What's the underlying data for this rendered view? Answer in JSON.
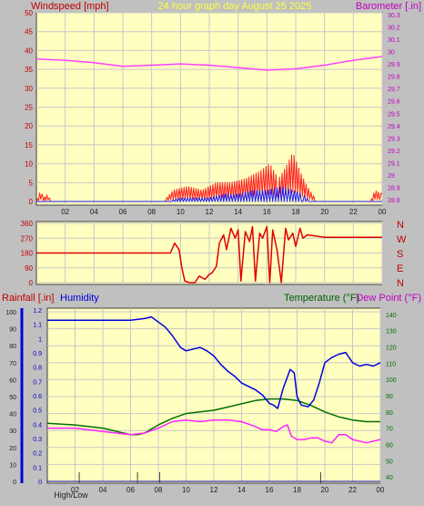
{
  "colors": {
    "panel_bg": "#c0c0c0",
    "plot_bg": "#ffffc0",
    "grid": "#c8c8c8",
    "wind": "#ff2020",
    "gust_blue": "#1a1aff",
    "barometer": "#ff40ff",
    "direction": "#e00000",
    "humidity": "#0000e0",
    "temperature": "#007000",
    "dewpoint": "#ff20ff",
    "title": "#ffff40",
    "axis_text_left": "#c00000",
    "axis_text_right": "#c000c0",
    "rain_ticks": "#0000c0",
    "temp_ticks": "#007000"
  },
  "chart_data": [
    {
      "id": "wind_baro",
      "type": "line",
      "title": "24 hour graph day   August 25 2025",
      "left_label": "Windspeed [mph]",
      "right_label": "Barometer [.in]",
      "x_ticks": [
        "02",
        "04",
        "06",
        "08",
        "10",
        "12",
        "14",
        "16",
        "18",
        "20",
        "22",
        "00"
      ],
      "x_range_hours": [
        0,
        24
      ],
      "left_ylim": [
        0,
        50
      ],
      "left_ticks": [
        "0",
        "5",
        "10",
        "15",
        "20",
        "25",
        "30",
        "35",
        "40",
        "45",
        "50"
      ],
      "right_ylim": [
        28.8,
        30.3
      ],
      "right_ticks": [
        "28.8",
        "28.9",
        "29",
        "29.1",
        "29.2",
        "29.3",
        "29.4",
        "29.5",
        "29.6",
        "29.7",
        "29.8",
        "29.9",
        "30",
        "30.1",
        "30.2",
        "30.3"
      ],
      "grid": true,
      "series": [
        {
          "name": "Barometer",
          "axis": "right",
          "x": [
            0,
            2,
            4,
            6,
            8,
            10,
            12,
            14,
            16,
            18,
            20,
            22,
            24
          ],
          "y": [
            29.94,
            29.93,
            29.91,
            29.88,
            29.89,
            29.9,
            29.89,
            29.87,
            29.85,
            29.86,
            29.89,
            29.93,
            29.96
          ]
        },
        {
          "name": "Wind gust",
          "axis": "left",
          "x": [
            0,
            0.3,
            0.5,
            0.8,
            1,
            8.8,
            9.5,
            10.5,
            11.5,
            12.5,
            13.5,
            14.5,
            15.5,
            16.2,
            16.8,
            17.3,
            17.8,
            18.3,
            18.8,
            19.5,
            23.2,
            23.5,
            24
          ],
          "y": [
            0,
            3,
            1,
            2,
            0,
            0,
            3,
            4,
            3,
            5,
            5,
            6,
            8,
            10,
            6,
            9,
            13,
            8,
            4,
            0,
            0,
            3,
            2
          ]
        },
        {
          "name": "Wind speed",
          "axis": "left",
          "x": [
            0,
            9,
            10,
            11,
            12,
            13,
            14,
            15,
            16,
            17,
            17.8,
            18.5,
            19,
            24
          ],
          "y": [
            0,
            0,
            1,
            1,
            1,
            2,
            2,
            3,
            3,
            4,
            3,
            2,
            0,
            0
          ]
        }
      ]
    },
    {
      "id": "direction",
      "type": "line",
      "x_ticks": [],
      "x_range_hours": [
        0,
        24
      ],
      "ylim": [
        0,
        360
      ],
      "left_ticks": [
        "0",
        "90",
        "180",
        "270",
        "360"
      ],
      "right_ticks": [
        "N",
        "W",
        "S",
        "E",
        "N"
      ],
      "grid": true,
      "series": [
        {
          "name": "Wind direction",
          "x": [
            0,
            9.3,
            9.6,
            9.9,
            10.1,
            10.3,
            10.6,
            11,
            11.3,
            11.7,
            12,
            12.2,
            12.5,
            12.7,
            13,
            13.2,
            13.5,
            13.8,
            14,
            14.2,
            14.5,
            14.8,
            15,
            15.2,
            15.5,
            15.7,
            16,
            16.2,
            16.4,
            16.7,
            17,
            17.3,
            17.5,
            17.8,
            18,
            18.3,
            18.5,
            18.8,
            19.2,
            20,
            24
          ],
          "y": [
            180,
            180,
            240,
            200,
            90,
            10,
            0,
            0,
            40,
            20,
            50,
            60,
            100,
            240,
            290,
            200,
            330,
            270,
            320,
            10,
            310,
            250,
            340,
            10,
            300,
            270,
            340,
            0,
            320,
            200,
            0,
            330,
            260,
            300,
            220,
            330,
            270,
            290,
            285,
            275,
            275
          ]
        }
      ]
    },
    {
      "id": "rain_hum_temp",
      "type": "line",
      "left_label_1": "Rainfall [.in]",
      "left_label_2": "Humidity",
      "right_label_1": "Temperature (°F)",
      "right_label_2": "Dew Point (°F)",
      "x_ticks": [
        "02",
        "04",
        "06",
        "08",
        "10",
        "12",
        "14",
        "16",
        "18",
        "20",
        "22",
        "00"
      ],
      "x_range_hours": [
        0,
        24
      ],
      "humidity_ylim": [
        0,
        100
      ],
      "humidity_ticks": [
        "0",
        "10",
        "20",
        "30",
        "40",
        "50",
        "60",
        "70",
        "80",
        "90",
        "100"
      ],
      "rain_ylim": [
        0,
        1.2
      ],
      "rain_ticks": [
        "0",
        "0.1",
        "0.2",
        "0.3",
        "0.4",
        "0.5",
        "0.6",
        "0.7",
        "0.8",
        "0.9",
        "1",
        "1.1",
        "1.2"
      ],
      "temp_ylim": [
        35,
        145
      ],
      "temp_ticks": [
        "40",
        "50",
        "60",
        "70",
        "80",
        "90",
        "100",
        "110",
        "120",
        "130",
        "140"
      ],
      "bottom_text": "High/Low",
      "grid": true,
      "series": [
        {
          "name": "Humidity",
          "axis": "humidity",
          "x": [
            0,
            2,
            4,
            6,
            7,
            7.5,
            8,
            8.5,
            9,
            9.6,
            10,
            10.5,
            11,
            11.5,
            12,
            12.5,
            13,
            13.5,
            14,
            14.5,
            15,
            15.5,
            16,
            16.3,
            16.6,
            17,
            17.5,
            17.8,
            18,
            18.3,
            18.8,
            19.2,
            19.6,
            20,
            20.5,
            21,
            21.5,
            22,
            22.5,
            23,
            23.5,
            24
          ],
          "y": [
            95,
            95,
            95,
            95,
            96,
            97,
            94,
            91,
            86,
            79,
            77,
            78,
            79,
            77,
            74,
            69,
            65,
            62,
            58,
            56,
            54,
            51,
            46,
            45,
            43,
            55,
            66,
            64,
            50,
            45,
            44,
            48,
            58,
            70,
            73,
            75,
            76,
            70,
            68,
            69,
            68,
            70
          ]
        },
        {
          "name": "Temperature",
          "axis": "temp",
          "x": [
            0,
            2,
            4,
            5,
            6,
            6.5,
            7,
            8,
            9,
            10,
            11,
            12,
            13,
            14,
            15,
            16,
            17,
            18,
            19,
            20,
            21,
            22,
            23,
            24
          ],
          "y": [
            73,
            72,
            70,
            68,
            66,
            66,
            67,
            72,
            76,
            79,
            80,
            81,
            83,
            85,
            87,
            88,
            88,
            87,
            84,
            80,
            77,
            75,
            74,
            74
          ]
        },
        {
          "name": "Dew Point",
          "axis": "temp",
          "x": [
            0,
            2,
            4,
            5,
            6,
            7,
            8,
            9,
            10,
            11,
            12,
            13,
            14,
            15,
            15.5,
            16,
            16.5,
            17,
            17.3,
            17.6,
            18,
            18.5,
            19,
            19.5,
            20,
            20.5,
            21,
            21.5,
            22,
            23,
            24
          ],
          "y": [
            70,
            70,
            68,
            67,
            66,
            67,
            70,
            74,
            75,
            74,
            75,
            75,
            74,
            71,
            69,
            69,
            68,
            71,
            72,
            65,
            63,
            63,
            64,
            64,
            62,
            61,
            66,
            66,
            63,
            61,
            63
          ]
        },
        {
          "name": "Rainfall",
          "axis": "rain",
          "x": [
            0,
            24
          ],
          "y": [
            0,
            0
          ]
        }
      ],
      "high_low_markers_hours": [
        2.3,
        6.5,
        8.1,
        19.7
      ]
    }
  ]
}
